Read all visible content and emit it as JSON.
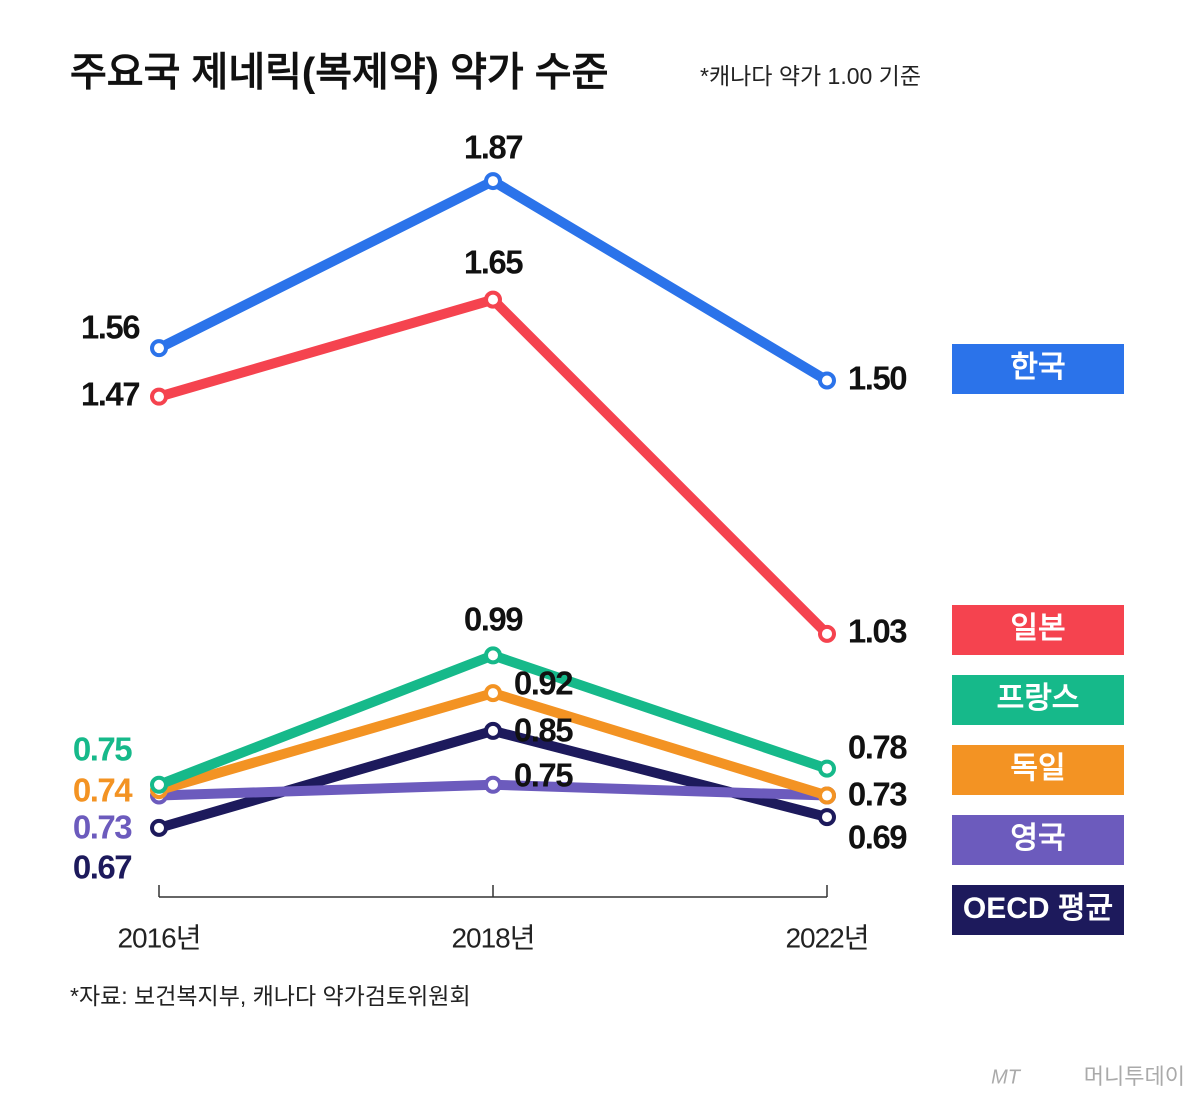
{
  "chart_data": {
    "type": "line",
    "title": "주요국 제네릭(복제약) 약가 수준",
    "subtitle": "*캐나다 약가 1.00 기준",
    "source": "*자료: 보건복지부, 캐나다 약가검토위원회",
    "watermark": {
      "logo": "MT",
      "name": "머니투데이"
    },
    "categories": [
      "2016년",
      "2018년",
      "2022년"
    ],
    "series": [
      {
        "name": "한국",
        "color": "#2b73ea",
        "values": [
          1.56,
          1.87,
          1.5
        ],
        "value_labels": [
          "1.56",
          "1.87",
          "1.50"
        ]
      },
      {
        "name": "일본",
        "color": "#f5434f",
        "values": [
          1.47,
          1.65,
          1.03
        ]
      },
      {
        "name": "프랑스",
        "color": "#16b98a",
        "values": [
          0.75,
          0.99,
          0.78
        ]
      },
      {
        "name": "독일",
        "color": "#f39323",
        "values": [
          0.74,
          0.92,
          0.73
        ]
      },
      {
        "name": "영국",
        "color": "#6c5bbd",
        "values": [
          0.73,
          0.75,
          0.73
        ],
        "value_labels": [
          "0.73",
          "0.75",
          null
        ]
      },
      {
        "name": "OECD 평균",
        "color": "#1d1a5c",
        "values": [
          0.67,
          0.85,
          0.69
        ]
      }
    ]
  }
}
